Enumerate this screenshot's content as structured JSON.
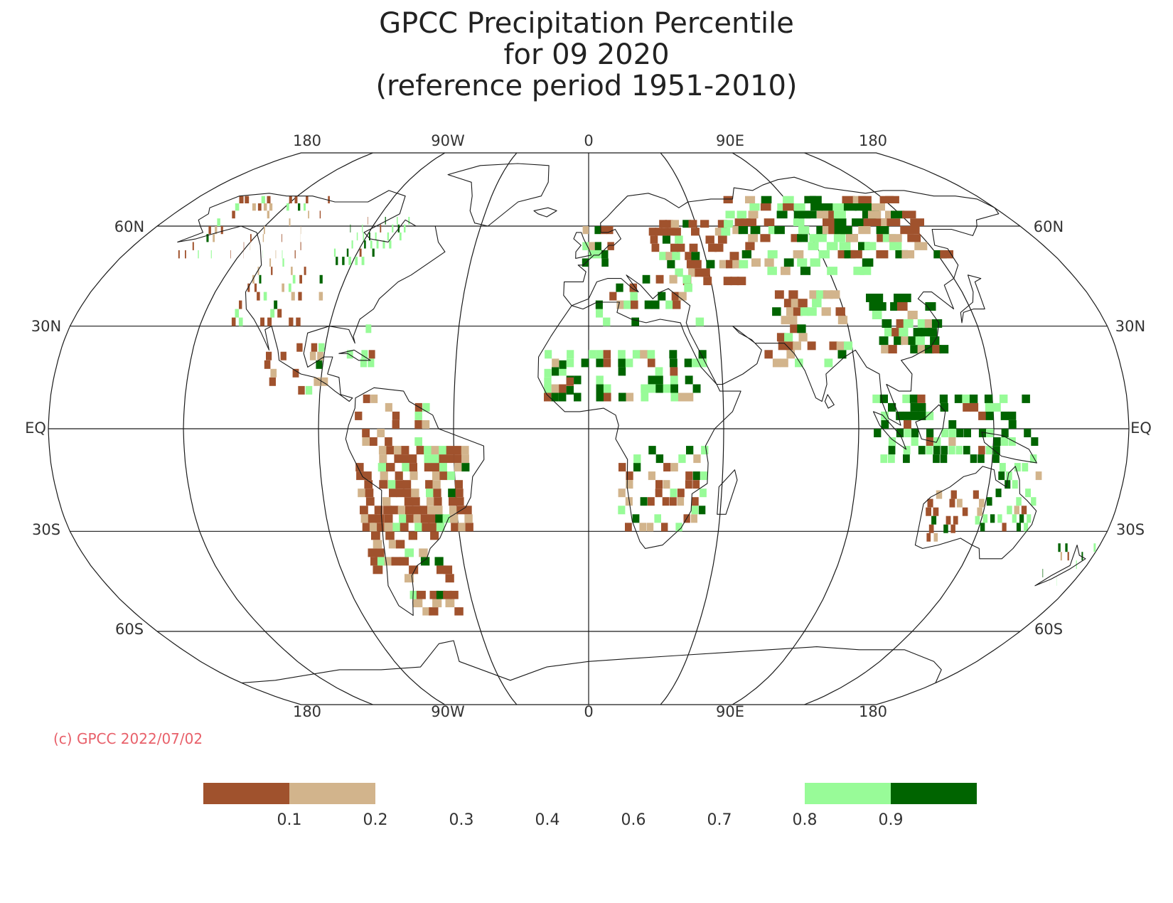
{
  "title": {
    "line1": "GPCC Precipitation Percentile",
    "line2": "for 09 2020",
    "line3": "(reference period 1951-2010)"
  },
  "map": {
    "projection": "Robinson",
    "center_longitude": "0",
    "top_longitude_labels": [
      "180",
      "90W",
      "0",
      "90E",
      "180"
    ],
    "bottom_longitude_labels": [
      "180",
      "90W",
      "0",
      "90E",
      "180"
    ],
    "latitude_labels": [
      "60N",
      "30N",
      "EQ",
      "30S",
      "60S"
    ],
    "anomaly_regions": [
      {
        "name": "central South America",
        "category": "<0.1",
        "color": "#a0522d"
      },
      {
        "name": "western Australia",
        "category": "<0.1",
        "color": "#a0522d"
      },
      {
        "name": "eastern Europe / Russia",
        "category": "<0.1",
        "color": "#a0522d"
      },
      {
        "name": "Alaska / western Canada",
        "category": "<0.1",
        "color": "#a0522d"
      },
      {
        "name": "eastern China",
        "category": ">0.9",
        "color": "#006400"
      },
      {
        "name": "central Siberia",
        "category": ">0.9",
        "color": "#006400"
      },
      {
        "name": "Hudson Bay region",
        "category": "0.8-0.9",
        "color": "#98fb98"
      },
      {
        "name": "Sahel",
        "category": ">0.9",
        "color": "#006400"
      },
      {
        "name": "Indonesia",
        "category": ">0.9",
        "color": "#006400"
      },
      {
        "name": "eastern Australia",
        "category": "0.8-0.9",
        "color": "#98fb98"
      }
    ]
  },
  "copyright": {
    "text": "(c) GPCC 2022/07/02",
    "color": "#e8606a"
  },
  "legend": {
    "tick_labels": [
      "0.1",
      "0.2",
      "0.3",
      "0.4",
      "0.6",
      "0.7",
      "0.8",
      "0.9"
    ],
    "colors": {
      "below_0_1": "#a0522d",
      "0_1_to_0_2": "#d2b48c",
      "0_8_to_0_9": "#98fb98",
      "above_0_9": "#006400"
    }
  }
}
